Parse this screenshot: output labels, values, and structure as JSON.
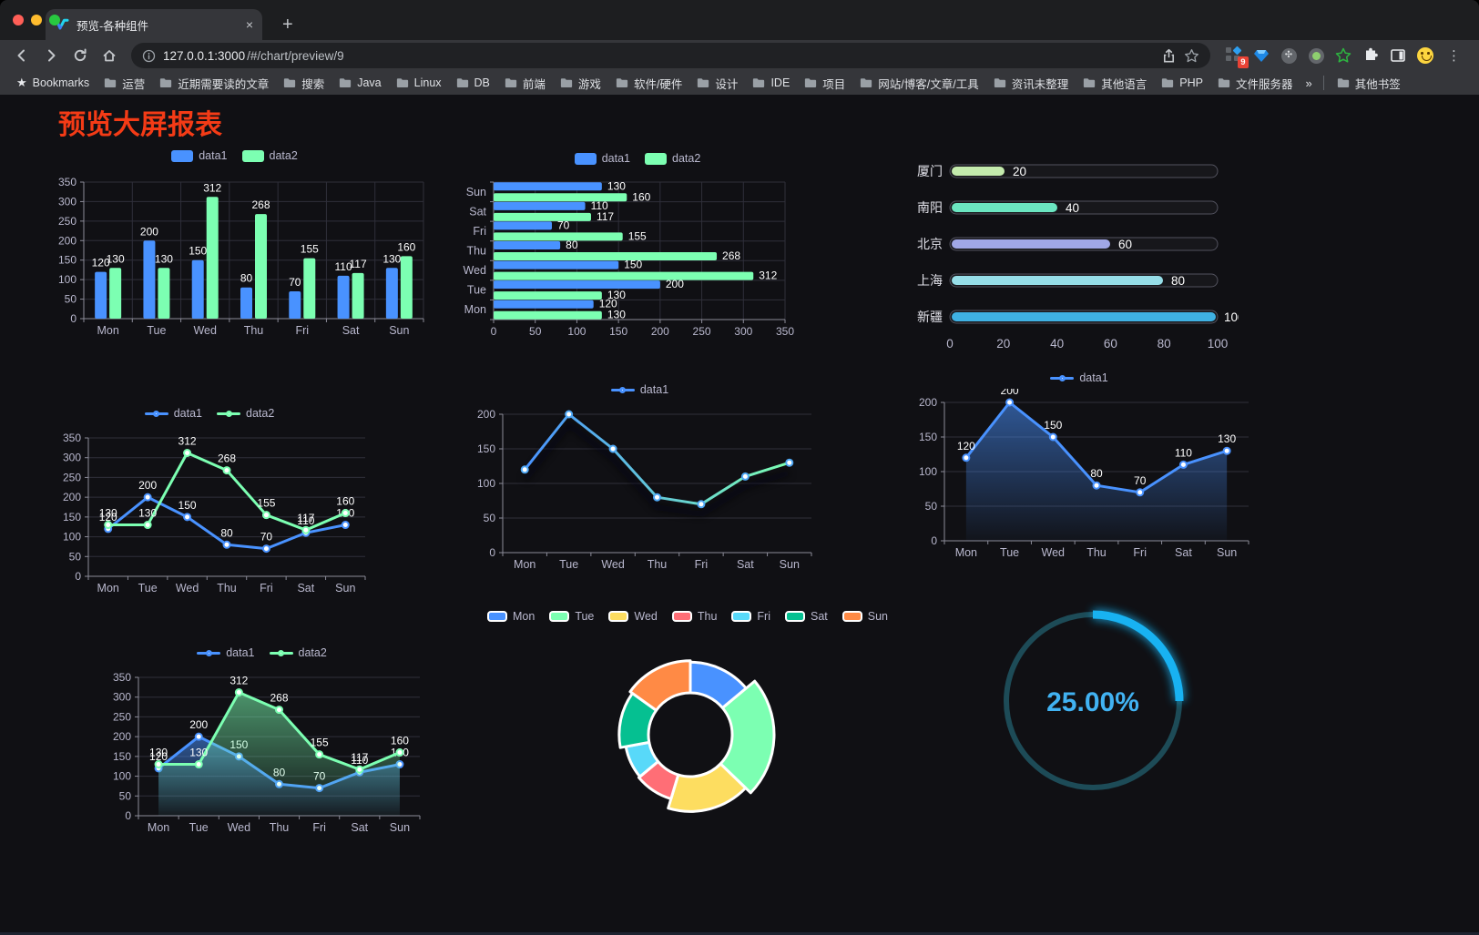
{
  "browser": {
    "tab_title": "预览-各种组件",
    "new_tab_label": "+",
    "close_tab_label": "×",
    "url_host": "127.0.0.1:3000",
    "url_path": "/#/chart/preview/9",
    "extension_badge": "9",
    "menu_icon_label": "⋮",
    "bookmarks_label": "Bookmarks",
    "bookmarks": [
      "运营",
      "近期需要读的文章",
      "搜索",
      "Java",
      "Linux",
      "DB",
      "前端",
      "游戏",
      "软件/硬件",
      "设计",
      "IDE",
      "项目",
      "网站/博客/文章/工具",
      "资讯未整理",
      "其他语言",
      "PHP",
      "文件服务器"
    ],
    "bookmarks_overflow": "»",
    "other_bookmarks": "其他书签"
  },
  "page": {
    "title": "预览大屏报表",
    "title_color": "#f43b16",
    "background": "#101014",
    "axis_text_color": "#b9b8ce"
  },
  "chart_data": [
    {
      "id": "grouped-bar-chart",
      "type": "bar",
      "legend": true,
      "categories": [
        "Mon",
        "Tue",
        "Wed",
        "Thu",
        "Fri",
        "Sat",
        "Sun"
      ],
      "series": [
        {
          "name": "data1",
          "color": "#4992ff",
          "values": [
            120,
            200,
            150,
            80,
            70,
            110,
            130
          ]
        },
        {
          "name": "data2",
          "color": "#7cffb2",
          "values": [
            130,
            130,
            312,
            268,
            155,
            117,
            160
          ]
        }
      ],
      "ylim": [
        0,
        350
      ],
      "ytick_step": 50,
      "grid": true
    },
    {
      "id": "horizontal-bar-chart",
      "type": "hbar",
      "legend": true,
      "categories": [
        "Sun",
        "Sat",
        "Fri",
        "Thu",
        "Wed",
        "Tue",
        "Mon"
      ],
      "series": [
        {
          "name": "data1",
          "color": "#4992ff",
          "values": [
            130,
            110,
            70,
            80,
            150,
            200,
            120
          ]
        },
        {
          "name": "data2",
          "color": "#7cffb2",
          "values": [
            160,
            117,
            155,
            268,
            312,
            130,
            130
          ]
        }
      ],
      "xlim": [
        0,
        350
      ],
      "xtick_step": 50,
      "grid": true
    },
    {
      "id": "city-progress-chart",
      "type": "progress",
      "max": 100,
      "rows": [
        {
          "label": "厦门",
          "value": 20,
          "color": "#c4ebad"
        },
        {
          "label": "南阳",
          "value": 40,
          "color": "#6be6c1"
        },
        {
          "label": "北京",
          "value": 60,
          "color": "#a0a7e6"
        },
        {
          "label": "上海",
          "value": 80,
          "color": "#96dee8"
        },
        {
          "label": "新疆",
          "value": 100,
          "color": "#3fb1e3"
        }
      ],
      "xticks": [
        0,
        20,
        40,
        60,
        80,
        100
      ]
    },
    {
      "id": "two-series-line-chart",
      "type": "line",
      "legend": true,
      "labels": true,
      "categories": [
        "Mon",
        "Tue",
        "Wed",
        "Thu",
        "Fri",
        "Sat",
        "Sun"
      ],
      "series": [
        {
          "name": "data1",
          "color": "#4992ff",
          "values": [
            120,
            200,
            150,
            80,
            70,
            110,
            130
          ]
        },
        {
          "name": "data2",
          "color": "#7cffb2",
          "values": [
            130,
            130,
            312,
            268,
            155,
            117,
            160
          ]
        }
      ],
      "ylim": [
        0,
        350
      ],
      "ytick_step": 50
    },
    {
      "id": "gradient-line-chart",
      "type": "line",
      "legend": true,
      "labels": false,
      "categories": [
        "Mon",
        "Tue",
        "Wed",
        "Thu",
        "Fri",
        "Sat",
        "Sun"
      ],
      "series": [
        {
          "name": "data1",
          "color": "#4992ff",
          "values": [
            120,
            200,
            150,
            80,
            70,
            110,
            130
          ]
        }
      ],
      "gradient": [
        "#4992ff",
        "#7cffb2"
      ],
      "shadow": true,
      "ylim": [
        0,
        200
      ],
      "ytick_step": 50
    },
    {
      "id": "single-area-chart",
      "type": "line",
      "legend": true,
      "labels": true,
      "categories": [
        "Mon",
        "Tue",
        "Wed",
        "Thu",
        "Fri",
        "Sat",
        "Sun"
      ],
      "series": [
        {
          "name": "data1",
          "color": "#4992ff",
          "values": [
            120,
            200,
            150,
            80,
            70,
            110,
            130
          ],
          "area": true
        }
      ],
      "ylim": [
        0,
        200
      ],
      "ytick_step": 50
    },
    {
      "id": "two-series-area-chart",
      "type": "line",
      "legend": true,
      "labels": true,
      "categories": [
        "Mon",
        "Tue",
        "Wed",
        "Thu",
        "Fri",
        "Sat",
        "Sun"
      ],
      "series": [
        {
          "name": "data1",
          "color": "#4992ff",
          "values": [
            120,
            200,
            150,
            80,
            70,
            110,
            130
          ],
          "area": true
        },
        {
          "name": "data2",
          "color": "#7cffb2",
          "values": [
            130,
            130,
            312,
            268,
            155,
            117,
            160
          ],
          "area": true
        }
      ],
      "ylim": [
        0,
        350
      ],
      "ytick_step": 50
    },
    {
      "id": "rose-donut-chart",
      "type": "pie",
      "slices": [
        {
          "name": "Mon",
          "value": 120,
          "color": "#4992ff"
        },
        {
          "name": "Tue",
          "value": 200,
          "color": "#7cffb2"
        },
        {
          "name": "Wed",
          "value": 150,
          "color": "#fddd60"
        },
        {
          "name": "Thu",
          "value": 80,
          "color": "#ff6e76"
        },
        {
          "name": "Fri",
          "value": 70,
          "color": "#58d9f9"
        },
        {
          "name": "Sat",
          "value": 110,
          "color": "#05c091"
        },
        {
          "name": "Sun",
          "value": 130,
          "color": "#ff8a45"
        }
      ]
    },
    {
      "id": "gauge-percent-chart",
      "type": "gauge",
      "label": "25.00%",
      "percent": 25,
      "colors": {
        "track": "#1d4b57",
        "arc": "#18b2f2",
        "text": "#41b2f2"
      }
    }
  ]
}
